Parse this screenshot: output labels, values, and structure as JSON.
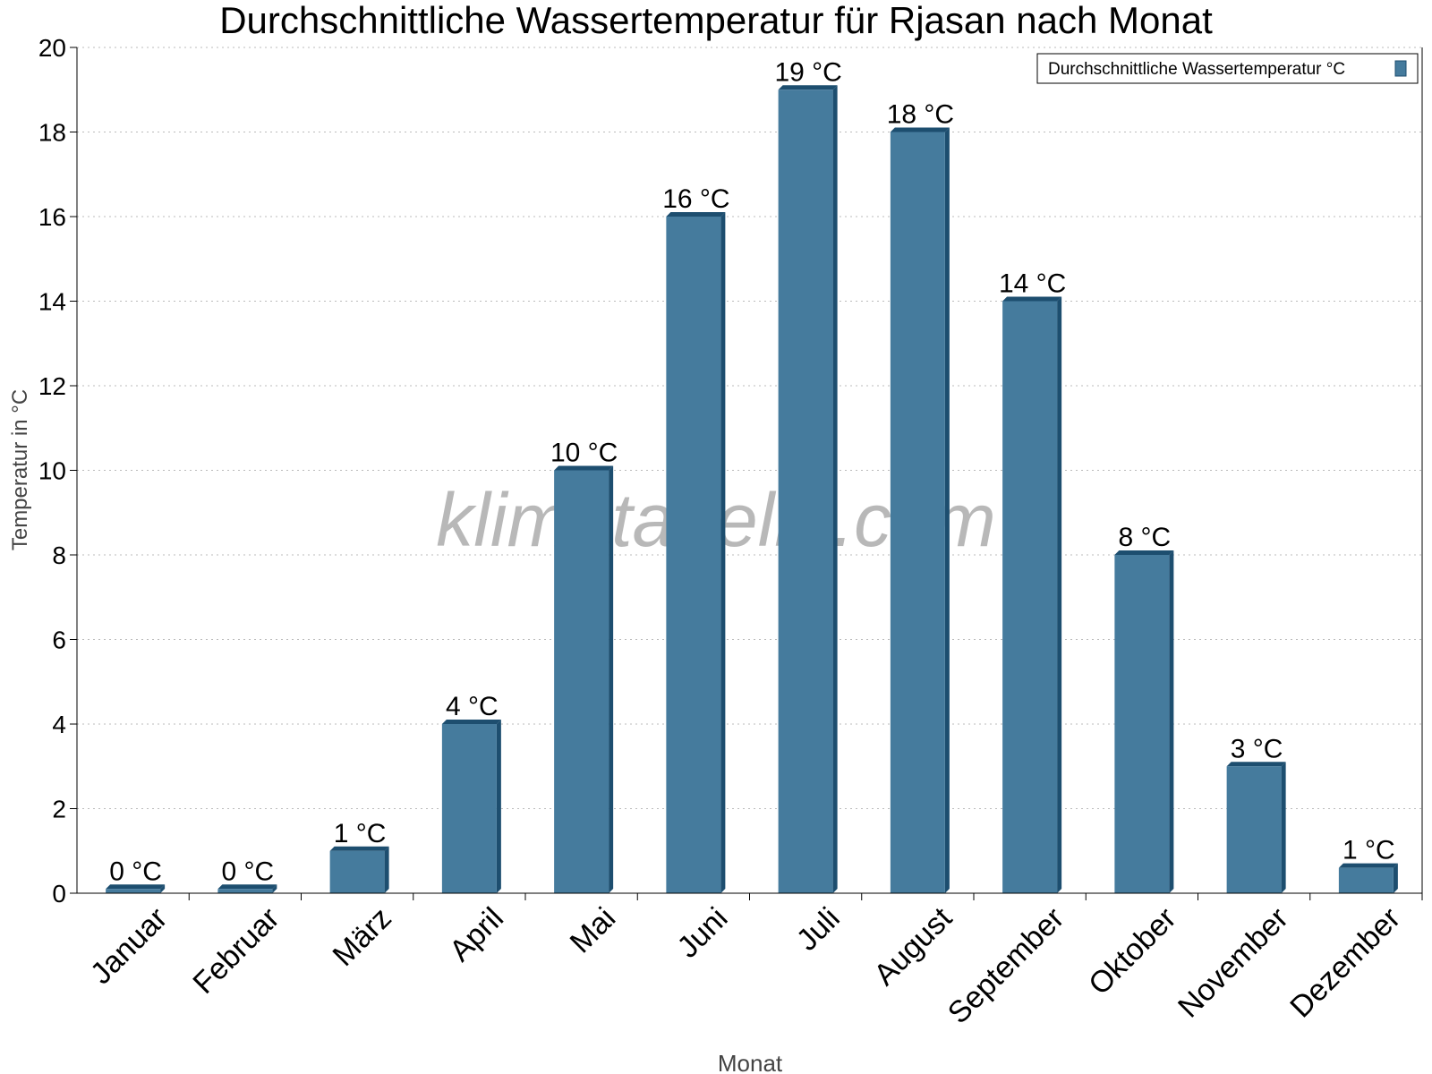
{
  "chart_data": {
    "type": "bar",
    "title": "Durchschnittliche Wassertemperatur für Rjasan nach Monat",
    "xlabel": "Monat",
    "ylabel": "Temperatur in °C",
    "categories": [
      "Januar",
      "Februar",
      "März",
      "April",
      "Mai",
      "Juni",
      "Juli",
      "August",
      "September",
      "Oktober",
      "November",
      "Dezember"
    ],
    "series": [
      {
        "name": "Durchschnittliche Wassertemperatur °C",
        "values": [
          0.1,
          0.1,
          1,
          4,
          10,
          16,
          19,
          18,
          14,
          8,
          3,
          0.6
        ],
        "labels": [
          "0 °C",
          "0 °C",
          "1 °C",
          "4 °C",
          "10 °C",
          "16 °C",
          "19 °C",
          "18 °C",
          "14 °C",
          "8 °C",
          "3 °C",
          "1 °C"
        ]
      }
    ],
    "ylim": [
      0,
      20
    ],
    "yticks": [
      0,
      2,
      4,
      6,
      8,
      10,
      12,
      14,
      16,
      18,
      20
    ],
    "grid": true,
    "legend": "top-right",
    "colors": {
      "bar": "#457b9d",
      "bar_side": "#1d4e6f"
    },
    "watermark": "klimatabelle.com"
  }
}
